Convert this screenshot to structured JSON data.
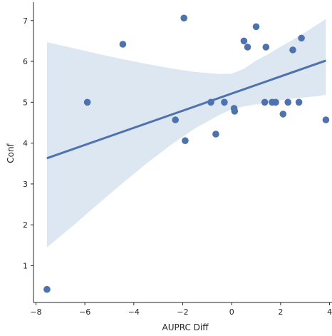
{
  "chart_data": {
    "type": "scatter",
    "title": "",
    "xlabel": "AUPRC Diff",
    "ylabel": "Conf",
    "xlim": [
      -8.1,
      4.1
    ],
    "ylim": [
      0.1,
      7.45
    ],
    "xticks": [
      -8,
      -6,
      -4,
      -2,
      0,
      2,
      4
    ],
    "yticks": [
      1,
      2,
      3,
      4,
      5,
      6,
      7
    ],
    "grid": false,
    "colors": {
      "points": "#4c72b0",
      "line": "#4c72b0",
      "band": "#dde7f1"
    },
    "points": [
      {
        "x": -7.55,
        "y": 0.42
      },
      {
        "x": -5.9,
        "y": 5.0
      },
      {
        "x": -4.45,
        "y": 6.42
      },
      {
        "x": -2.3,
        "y": 4.57
      },
      {
        "x": -1.95,
        "y": 7.06
      },
      {
        "x": -1.9,
        "y": 4.06
      },
      {
        "x": -0.85,
        "y": 5.0
      },
      {
        "x": -0.65,
        "y": 4.22
      },
      {
        "x": -0.3,
        "y": 5.0
      },
      {
        "x": 0.1,
        "y": 4.85
      },
      {
        "x": 0.12,
        "y": 4.78
      },
      {
        "x": 0.5,
        "y": 6.5
      },
      {
        "x": 0.65,
        "y": 6.35
      },
      {
        "x": 1.0,
        "y": 6.85
      },
      {
        "x": 1.35,
        "y": 5.0
      },
      {
        "x": 1.4,
        "y": 6.35
      },
      {
        "x": 1.65,
        "y": 5.0
      },
      {
        "x": 1.8,
        "y": 5.0
      },
      {
        "x": 2.1,
        "y": 4.71
      },
      {
        "x": 2.3,
        "y": 5.0
      },
      {
        "x": 2.5,
        "y": 6.28
      },
      {
        "x": 2.75,
        "y": 5.0
      },
      {
        "x": 2.85,
        "y": 6.57
      },
      {
        "x": 3.85,
        "y": 4.57
      }
    ],
    "regression_line": {
      "x": [
        -7.55,
        3.85
      ],
      "y": [
        3.63,
        6.02
      ]
    },
    "confidence_band": {
      "x": [
        -7.55,
        -6.5,
        -5.5,
        -4.5,
        -3.5,
        -2.5,
        -1.5,
        -0.5,
        0.0,
        0.5,
        1.0,
        1.5,
        2.0,
        2.5,
        3.0,
        3.5,
        3.85
      ],
      "upper": [
        6.47,
        6.33,
        6.19,
        6.06,
        5.94,
        5.83,
        5.74,
        5.69,
        5.7,
        5.82,
        6.02,
        6.18,
        6.36,
        6.53,
        6.71,
        6.9,
        7.04
      ],
      "lower": [
        1.45,
        1.97,
        2.49,
        3.0,
        3.49,
        3.95,
        4.36,
        4.69,
        4.83,
        4.9,
        4.95,
        5.0,
        5.05,
        5.09,
        5.12,
        5.15,
        5.18
      ]
    }
  }
}
